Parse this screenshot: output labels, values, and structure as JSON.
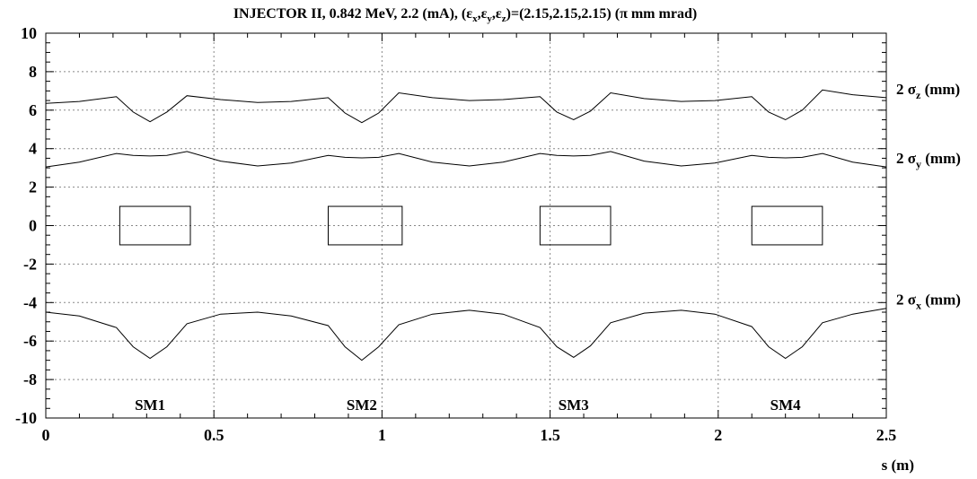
{
  "chart_data": {
    "type": "line",
    "title": "INJECTOR II, 0.842 MeV, 2.2 (mA), (εx,εy,εz)=(2.15,2.15,2.15) (π mm mrad)",
    "title_parts": {
      "prefix": "INJECTOR II, 0.842 MeV, 2.2 (mA), (",
      "eps": "ε",
      "sub_x": "x",
      "sub_y": "y",
      "sub_z": "z",
      "suffix": ")=(2.15,2.15,2.15) (π mm mrad)"
    },
    "xlabel": "s (m)",
    "ylabel": "",
    "xlim": [
      0,
      2.5
    ],
    "ylim": [
      -10,
      10
    ],
    "x_ticks": [
      "0",
      "0.5",
      "1",
      "1.5",
      "2",
      "2.5"
    ],
    "y_ticks": [
      "-10",
      "-8",
      "-6",
      "-4",
      "-2",
      "0",
      "2",
      "4",
      "6",
      "8",
      "10"
    ],
    "grid": true,
    "series": [
      {
        "name": "2 σz (mm)",
        "label_prefix": "2 σ",
        "label_sub": "z",
        "label_suffix": " (mm)",
        "x": [
          0,
          0.1,
          0.21,
          0.26,
          0.31,
          0.36,
          0.42,
          0.52,
          0.63,
          0.73,
          0.84,
          0.89,
          0.94,
          0.99,
          1.05,
          1.15,
          1.26,
          1.36,
          1.47,
          1.52,
          1.57,
          1.62,
          1.68,
          1.78,
          1.89,
          1.99,
          2.1,
          2.15,
          2.2,
          2.25,
          2.31,
          2.4,
          2.5
        ],
        "values": [
          6.35,
          6.45,
          6.7,
          5.9,
          5.4,
          5.9,
          6.75,
          6.55,
          6.4,
          6.45,
          6.65,
          5.85,
          5.35,
          5.85,
          6.9,
          6.65,
          6.5,
          6.55,
          6.7,
          5.9,
          5.5,
          5.95,
          6.9,
          6.6,
          6.45,
          6.5,
          6.7,
          5.9,
          5.5,
          6.0,
          7.05,
          6.8,
          6.65
        ]
      },
      {
        "name": "2 σy (mm)",
        "label_prefix": "2 σ",
        "label_sub": "y",
        "label_suffix": " (mm)",
        "x": [
          0,
          0.1,
          0.21,
          0.26,
          0.31,
          0.36,
          0.42,
          0.52,
          0.63,
          0.73,
          0.84,
          0.89,
          0.94,
          0.99,
          1.05,
          1.15,
          1.26,
          1.36,
          1.47,
          1.52,
          1.57,
          1.62,
          1.68,
          1.78,
          1.89,
          1.99,
          2.1,
          2.15,
          2.2,
          2.25,
          2.31,
          2.4,
          2.5
        ],
        "values": [
          3.05,
          3.3,
          3.75,
          3.65,
          3.62,
          3.65,
          3.85,
          3.35,
          3.1,
          3.25,
          3.65,
          3.55,
          3.52,
          3.55,
          3.75,
          3.3,
          3.1,
          3.3,
          3.75,
          3.65,
          3.62,
          3.65,
          3.85,
          3.35,
          3.1,
          3.25,
          3.65,
          3.55,
          3.52,
          3.55,
          3.75,
          3.3,
          3.05
        ]
      },
      {
        "name": "2 σx (mm)",
        "label_prefix": "2 σ",
        "label_sub": "x",
        "label_suffix": " (mm)",
        "x": [
          0,
          0.1,
          0.21,
          0.26,
          0.31,
          0.36,
          0.42,
          0.52,
          0.63,
          0.73,
          0.84,
          0.89,
          0.94,
          0.99,
          1.05,
          1.15,
          1.26,
          1.36,
          1.47,
          1.52,
          1.57,
          1.62,
          1.68,
          1.78,
          1.89,
          1.99,
          2.1,
          2.15,
          2.2,
          2.25,
          2.31,
          2.4,
          2.5
        ],
        "values": [
          -4.5,
          -4.7,
          -5.3,
          -6.3,
          -6.9,
          -6.3,
          -5.1,
          -4.6,
          -4.5,
          -4.7,
          -5.2,
          -6.3,
          -7.0,
          -6.3,
          -5.15,
          -4.6,
          -4.4,
          -4.6,
          -5.3,
          -6.3,
          -6.85,
          -6.25,
          -5.05,
          -4.55,
          -4.4,
          -4.6,
          -5.25,
          -6.3,
          -6.9,
          -6.3,
          -5.05,
          -4.6,
          -4.3
        ]
      }
    ],
    "annotations": [
      {
        "text": "SM1",
        "x": 0.31,
        "y": -9.3
      },
      {
        "text": "SM2",
        "x": 0.94,
        "y": -9.3
      },
      {
        "text": "SM3",
        "x": 1.57,
        "y": -9.3
      },
      {
        "text": "SM4",
        "x": 2.2,
        "y": -9.3
      }
    ],
    "magnets": [
      {
        "x0": 0.22,
        "x1": 0.43,
        "y0": -1,
        "y1": 1
      },
      {
        "x0": 0.84,
        "x1": 1.06,
        "y0": -1,
        "y1": 1
      },
      {
        "x0": 1.47,
        "x1": 1.68,
        "y0": -1,
        "y1": 1
      },
      {
        "x0": 2.1,
        "x1": 2.31,
        "y0": -1,
        "y1": 1
      }
    ]
  }
}
